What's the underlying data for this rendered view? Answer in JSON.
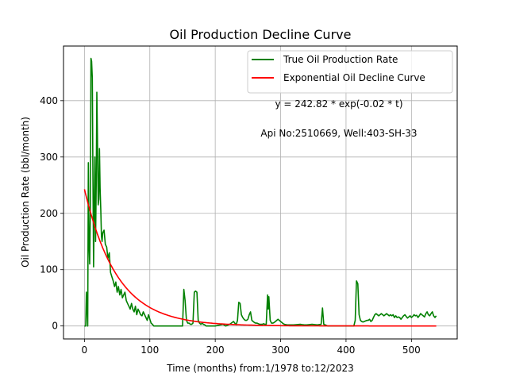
{
  "chart_data": {
    "type": "line",
    "title": "Oil Production Decline Curve",
    "xlabel": "Time (months) from:1/1978 to:12/2023",
    "ylabel": "Oil Production Rate (bbl/month)",
    "xlim": [
      -32,
      570
    ],
    "ylim": [
      -23,
      497
    ],
    "xticks": [
      0,
      100,
      200,
      300,
      400,
      500
    ],
    "yticks": [
      0,
      100,
      200,
      300,
      400
    ],
    "grid": true,
    "legend_position": "top-right",
    "annotations": [
      "y = 242.82 * exp(-0.02 * t)",
      "Api No:2510669, Well:403-SH-33"
    ],
    "series": [
      {
        "name": "True Oil Production Rate",
        "color": "#008000",
        "kind": "observed",
        "points": [
          [
            0,
            0
          ],
          [
            2,
            0
          ],
          [
            3,
            60
          ],
          [
            4,
            30
          ],
          [
            5,
            0
          ],
          [
            6,
            290
          ],
          [
            7,
            150
          ],
          [
            8,
            110
          ],
          [
            9,
            200
          ],
          [
            10,
            475
          ],
          [
            11,
            470
          ],
          [
            12,
            440
          ],
          [
            13,
            260
          ],
          [
            14,
            105
          ],
          [
            15,
            210
          ],
          [
            16,
            300
          ],
          [
            17,
            150
          ],
          [
            18,
            250
          ],
          [
            19,
            415
          ],
          [
            20,
            330
          ],
          [
            21,
            215
          ],
          [
            22,
            225
          ],
          [
            23,
            315
          ],
          [
            24,
            245
          ],
          [
            25,
            205
          ],
          [
            26,
            160
          ],
          [
            27,
            150
          ],
          [
            28,
            165
          ],
          [
            30,
            170
          ],
          [
            32,
            145
          ],
          [
            34,
            140
          ],
          [
            36,
            120
          ],
          [
            38,
            130
          ],
          [
            40,
            95
          ],
          [
            42,
            87
          ],
          [
            44,
            80
          ],
          [
            46,
            70
          ],
          [
            48,
            78
          ],
          [
            50,
            60
          ],
          [
            52,
            70
          ],
          [
            54,
            55
          ],
          [
            56,
            65
          ],
          [
            58,
            50
          ],
          [
            60,
            55
          ],
          [
            62,
            60
          ],
          [
            64,
            45
          ],
          [
            66,
            40
          ],
          [
            68,
            35
          ],
          [
            70,
            30
          ],
          [
            72,
            40
          ],
          [
            74,
            30
          ],
          [
            76,
            25
          ],
          [
            78,
            35
          ],
          [
            80,
            20
          ],
          [
            82,
            30
          ],
          [
            84,
            25
          ],
          [
            86,
            20
          ],
          [
            88,
            18
          ],
          [
            90,
            25
          ],
          [
            92,
            20
          ],
          [
            94,
            15
          ],
          [
            96,
            10
          ],
          [
            98,
            20
          ],
          [
            100,
            12
          ],
          [
            102,
            5
          ],
          [
            104,
            3
          ],
          [
            106,
            0
          ],
          [
            120,
            0
          ],
          [
            140,
            0
          ],
          [
            150,
            0
          ],
          [
            152,
            65
          ],
          [
            154,
            45
          ],
          [
            156,
            10
          ],
          [
            158,
            5
          ],
          [
            160,
            5
          ],
          [
            162,
            3
          ],
          [
            164,
            3
          ],
          [
            166,
            5
          ],
          [
            168,
            60
          ],
          [
            170,
            62
          ],
          [
            172,
            60
          ],
          [
            174,
            10
          ],
          [
            176,
            5
          ],
          [
            178,
            3
          ],
          [
            180,
            5
          ],
          [
            182,
            3
          ],
          [
            184,
            2
          ],
          [
            186,
            0
          ],
          [
            200,
            0
          ],
          [
            212,
            3
          ],
          [
            216,
            0
          ],
          [
            222,
            3
          ],
          [
            228,
            8
          ],
          [
            232,
            2
          ],
          [
            234,
            10
          ],
          [
            236,
            42
          ],
          [
            238,
            40
          ],
          [
            240,
            20
          ],
          [
            242,
            15
          ],
          [
            244,
            12
          ],
          [
            246,
            10
          ],
          [
            248,
            10
          ],
          [
            250,
            12
          ],
          [
            252,
            20
          ],
          [
            254,
            25
          ],
          [
            256,
            10
          ],
          [
            258,
            8
          ],
          [
            260,
            6
          ],
          [
            262,
            5
          ],
          [
            264,
            5
          ],
          [
            266,
            4
          ],
          [
            268,
            3
          ],
          [
            270,
            3
          ],
          [
            272,
            3
          ],
          [
            274,
            4
          ],
          [
            276,
            3
          ],
          [
            278,
            3
          ],
          [
            280,
            55
          ],
          [
            281,
            30
          ],
          [
            282,
            52
          ],
          [
            284,
            10
          ],
          [
            286,
            5
          ],
          [
            288,
            5
          ],
          [
            290,
            6
          ],
          [
            292,
            8
          ],
          [
            294,
            10
          ],
          [
            296,
            12
          ],
          [
            298,
            10
          ],
          [
            300,
            8
          ],
          [
            302,
            6
          ],
          [
            304,
            4
          ],
          [
            306,
            3
          ],
          [
            310,
            2
          ],
          [
            320,
            2
          ],
          [
            330,
            3
          ],
          [
            336,
            2
          ],
          [
            340,
            2
          ],
          [
            348,
            3
          ],
          [
            356,
            2
          ],
          [
            362,
            3
          ],
          [
            364,
            32
          ],
          [
            366,
            3
          ],
          [
            368,
            2
          ],
          [
            372,
            0
          ],
          [
            380,
            0
          ],
          [
            390,
            0
          ],
          [
            400,
            0
          ],
          [
            412,
            0
          ],
          [
            414,
            10
          ],
          [
            416,
            80
          ],
          [
            418,
            75
          ],
          [
            420,
            20
          ],
          [
            422,
            10
          ],
          [
            424,
            8
          ],
          [
            426,
            7
          ],
          [
            428,
            8
          ],
          [
            430,
            9
          ],
          [
            432,
            10
          ],
          [
            434,
            10
          ],
          [
            436,
            12
          ],
          [
            438,
            8
          ],
          [
            440,
            10
          ],
          [
            442,
            15
          ],
          [
            444,
            20
          ],
          [
            446,
            22
          ],
          [
            448,
            20
          ],
          [
            450,
            18
          ],
          [
            452,
            20
          ],
          [
            454,
            22
          ],
          [
            456,
            20
          ],
          [
            458,
            18
          ],
          [
            460,
            20
          ],
          [
            462,
            22
          ],
          [
            464,
            20
          ],
          [
            466,
            18
          ],
          [
            468,
            20
          ],
          [
            470,
            18
          ],
          [
            472,
            20
          ],
          [
            474,
            15
          ],
          [
            476,
            18
          ],
          [
            478,
            15
          ],
          [
            480,
            16
          ],
          [
            482,
            15
          ],
          [
            484,
            12
          ],
          [
            486,
            15
          ],
          [
            488,
            18
          ],
          [
            490,
            20
          ],
          [
            492,
            17
          ],
          [
            494,
            14
          ],
          [
            496,
            16
          ],
          [
            498,
            18
          ],
          [
            500,
            15
          ],
          [
            502,
            17
          ],
          [
            504,
            20
          ],
          [
            506,
            18
          ],
          [
            508,
            19
          ],
          [
            510,
            15
          ],
          [
            512,
            18
          ],
          [
            514,
            22
          ],
          [
            516,
            20
          ],
          [
            518,
            18
          ],
          [
            520,
            16
          ],
          [
            522,
            22
          ],
          [
            524,
            25
          ],
          [
            526,
            20
          ],
          [
            528,
            18
          ],
          [
            530,
            22
          ],
          [
            532,
            25
          ],
          [
            534,
            18
          ],
          [
            536,
            15
          ],
          [
            538,
            18
          ]
        ]
      },
      {
        "name": "Exponential Oil Decline Curve",
        "color": "#ff0000",
        "kind": "model",
        "amplitude": 242.82,
        "rate": 0.02,
        "t_range": [
          0,
          538
        ]
      }
    ]
  }
}
